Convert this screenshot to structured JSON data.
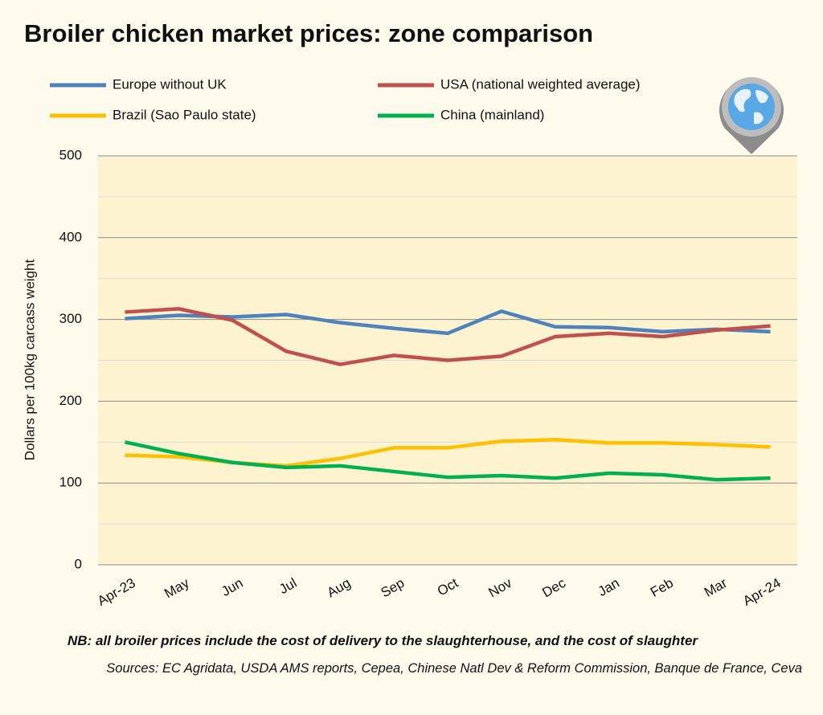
{
  "chart_data": {
    "type": "line",
    "title": "Broiler chicken market prices: zone comparison",
    "y_label": "Dollars per 100kg carcass weight",
    "categories": [
      "Apr-23",
      "May",
      "Jun",
      "Jul",
      "Aug",
      "Sep",
      "Oct",
      "Nov",
      "Dec",
      "Jan",
      "Feb",
      "Mar",
      "Apr-24"
    ],
    "series": [
      {
        "name": "Europe without UK",
        "color": "#4f81bd",
        "values": [
          301,
          305,
          303,
          306,
          296,
          289,
          283,
          310,
          291,
          290,
          285,
          288,
          285
        ]
      },
      {
        "name": "USA (national weighted average)",
        "color": "#c0504d",
        "values": [
          309,
          313,
          299,
          261,
          245,
          256,
          250,
          255,
          279,
          283,
          279,
          287,
          292
        ]
      },
      {
        "name": "Brazil (Sao Paulo state)",
        "color": "#ffc000",
        "values": [
          134,
          132,
          125,
          121,
          130,
          143,
          143,
          151,
          153,
          149,
          149,
          147,
          144
        ]
      },
      {
        "name": "China (mainland)",
        "color": "#00b050",
        "values": [
          150,
          136,
          125,
          119,
          121,
          114,
          107,
          109,
          106,
          112,
          110,
          104,
          106
        ]
      }
    ],
    "ylim": [
      0,
      500
    ],
    "yticks": [
      0,
      100,
      200,
      300,
      400,
      500
    ],
    "minor_yticks": [
      50,
      150,
      250,
      350,
      450
    ],
    "grid": true,
    "note": "NB: all broiler prices include the cost of delivery to the slaughterhouse, and the cost of slaughter",
    "sources": "Sources: EC Agridata, USDA AMS reports, Cepea, Chinese Natl Dev & Reform Commission, Banque de France, Ceva"
  }
}
